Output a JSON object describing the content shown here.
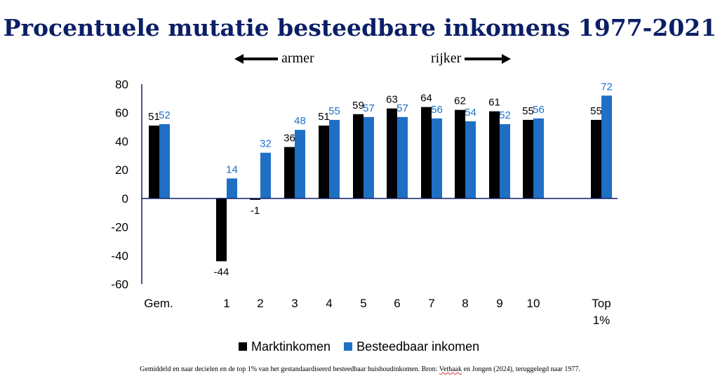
{
  "colors": {
    "title": "#0b1f66",
    "marktinkomen": "#000000",
    "besteedbaar": "#1f6fc5",
    "value_label_besteedbaar": "#1f6fc5",
    "axis": "#0b1f66"
  },
  "header": {
    "title": "Procentuele mutatie besteedbare inkomens 1977-2021",
    "armer": "armer",
    "rijker": "rijker"
  },
  "footnote": {
    "before": "Gemiddeld en naar decielen en de top 1% van het gestandaardiseerd besteedbaar huishoudinkomen. Bron: ",
    "underlined": "Vethaak",
    "after": " en Jongen (2024), teruggelegd naar 1977."
  },
  "chart_data": {
    "type": "bar",
    "title": "Procentuele mutatie besteedbare inkomens 1977-2021",
    "categories": [
      "Gem.",
      "1",
      "2",
      "3",
      "4",
      "5",
      "6",
      "7",
      "8",
      "9",
      "10",
      "Top 1%"
    ],
    "series": [
      {
        "name": "Marktinkomen",
        "values": [
          51,
          -44,
          -1,
          36,
          51,
          59,
          63,
          64,
          62,
          61,
          55,
          55
        ]
      },
      {
        "name": "Besteedbaar inkomen",
        "values": [
          52,
          14,
          32,
          48,
          55,
          57,
          57,
          56,
          54,
          52,
          56,
          72
        ]
      }
    ],
    "ylim": [
      -60,
      80
    ],
    "yticks": [
      80,
      60,
      40,
      20,
      0,
      -20,
      -40,
      -60
    ],
    "xlabel": "",
    "ylabel": "",
    "grid": false,
    "legend": "bottom"
  }
}
